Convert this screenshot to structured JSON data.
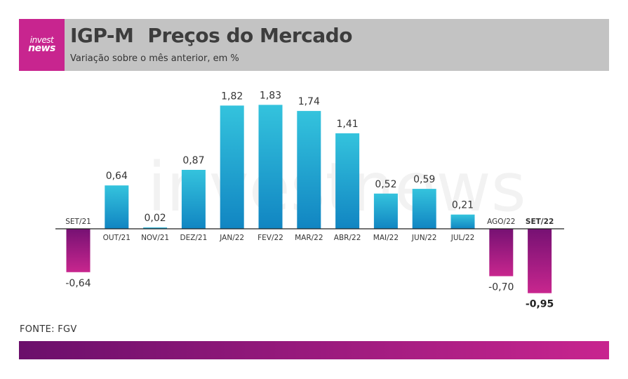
{
  "header": {
    "logo_top": "invest",
    "logo_bottom": "news",
    "title_main": "IGP-M",
    "title_rest": "Preços do Mercado",
    "subtitle": "Variação sobre o mês anterior, em %"
  },
  "source": "FONTE: FGV",
  "watermark": "investnews",
  "colors": {
    "positive_top": "#34c3dd",
    "positive_bottom": "#1185c2",
    "negative_top": "#761173",
    "negative_bottom": "#c8268e",
    "brand": "#c8258f",
    "header_bg": "#c3c3c3"
  },
  "chart_data": {
    "type": "bar",
    "title": "IGP-M Preços do Mercado",
    "categories": [
      "SET/21",
      "OUT/21",
      "NOV/21",
      "DEZ/21",
      "JAN/22",
      "FEV/22",
      "MAR/22",
      "ABR/22",
      "MAI/22",
      "JUN/22",
      "JUL/22",
      "AGO/22",
      "SET/22"
    ],
    "values": [
      -0.64,
      0.64,
      0.02,
      0.87,
      1.82,
      1.83,
      1.74,
      1.41,
      0.52,
      0.59,
      0.21,
      -0.7,
      -0.95
    ],
    "value_labels": [
      "-0,64",
      "0,64",
      "0,02",
      "0,87",
      "1,82",
      "1,83",
      "1,74",
      "1,41",
      "0,52",
      "0,59",
      "0,21",
      "-0,70",
      "-0,95"
    ],
    "highlight": "SET/22",
    "ylim": [
      -0.95,
      1.83
    ],
    "grid": false,
    "legend": "none"
  }
}
